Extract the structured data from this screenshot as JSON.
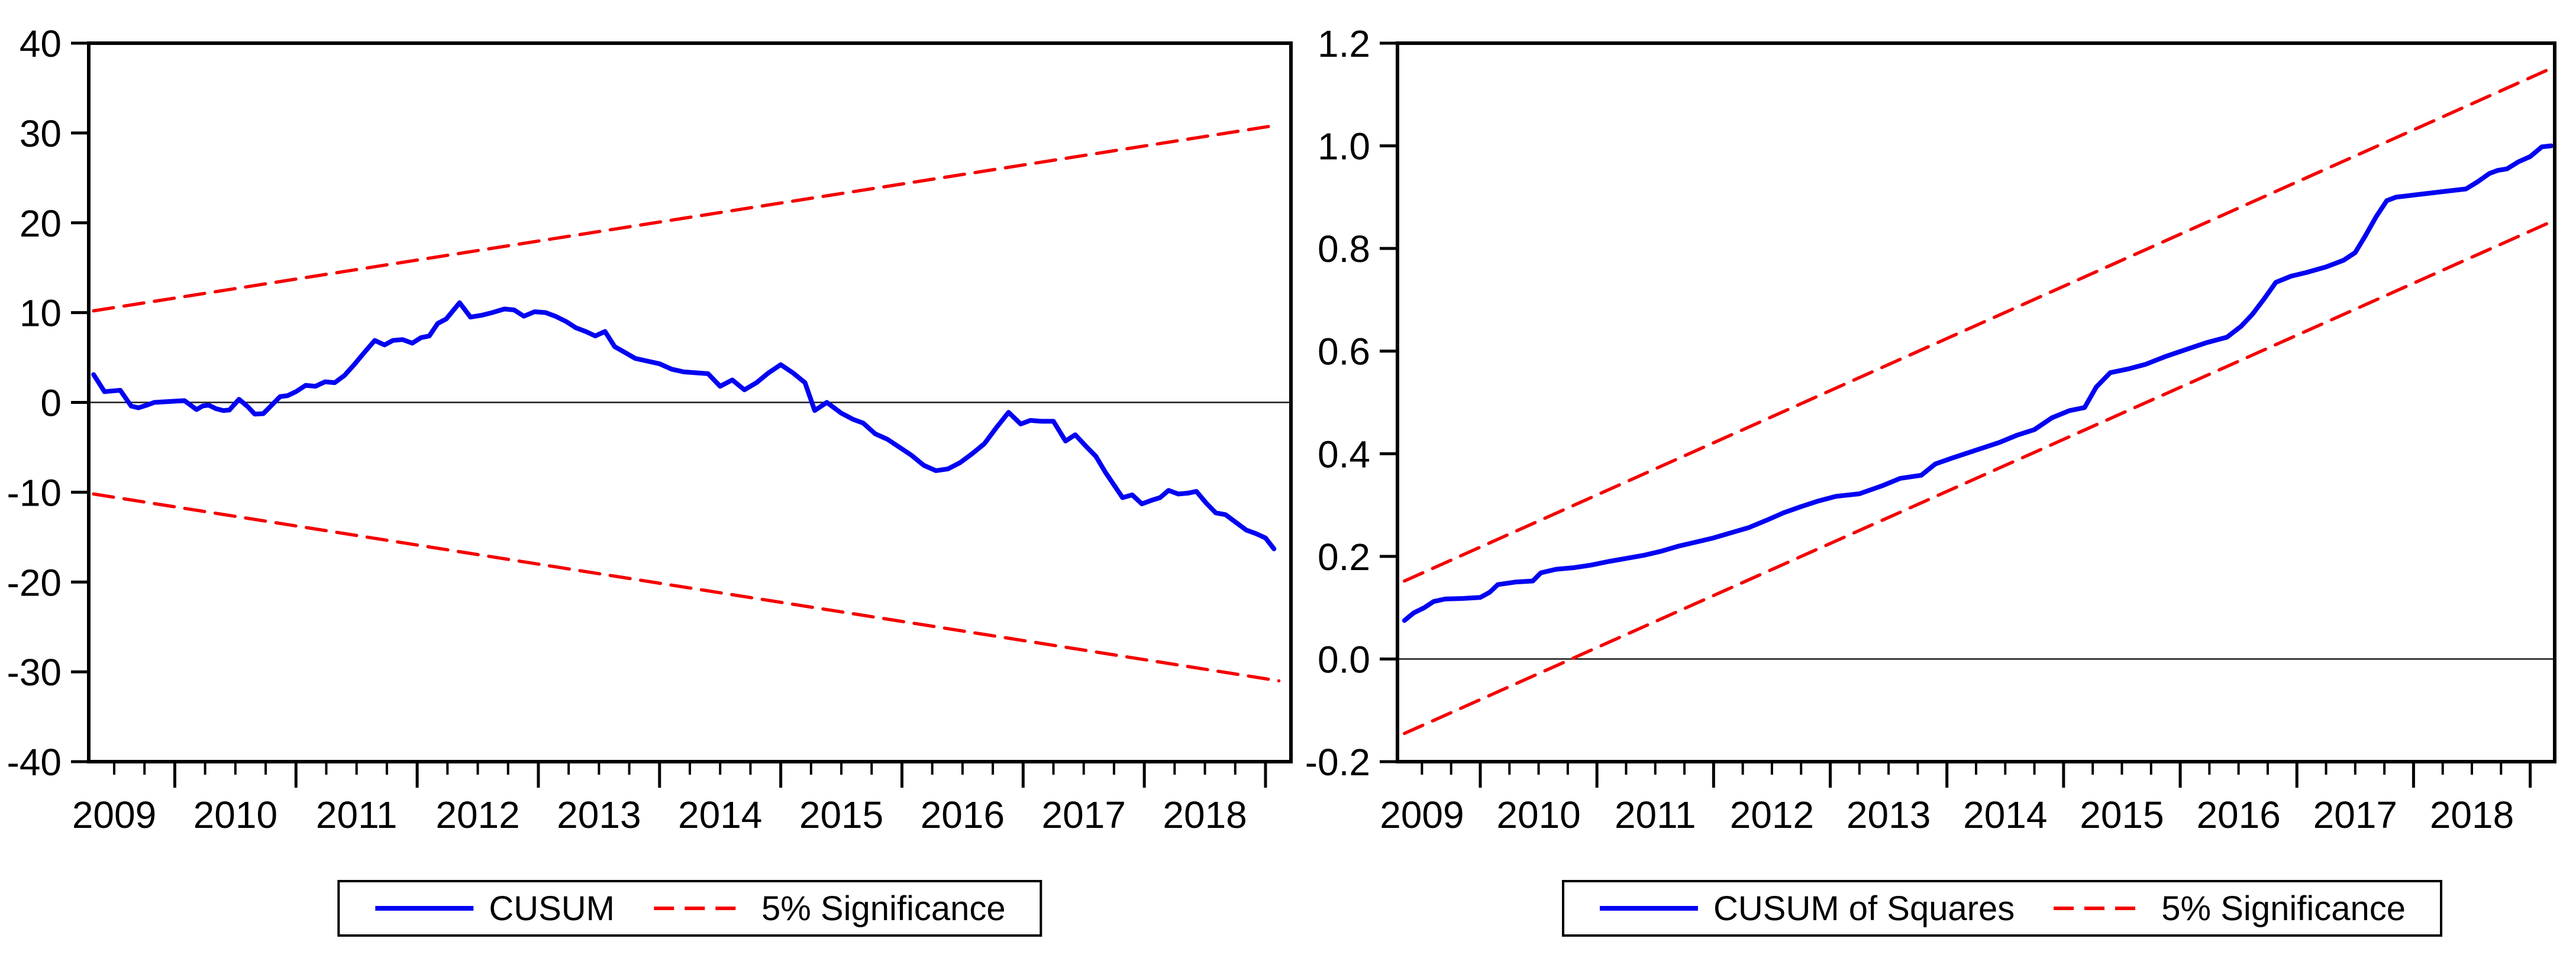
{
  "figure": {
    "background": "#ffffff",
    "series_color": "#0202f2",
    "bound_color": "#f40000",
    "axis_color": "#000000"
  },
  "chart_data": [
    {
      "type": "line",
      "title": "",
      "xlabel": "",
      "ylabel": "",
      "xlim": [
        2008.79,
        2018.71
      ],
      "ylim": [
        -40,
        40
      ],
      "grid": "zero-line-only",
      "legend_position": "bottom-center",
      "yticks": [
        {
          "v": 40,
          "label": "40"
        },
        {
          "v": 30,
          "label": "30"
        },
        {
          "v": 20,
          "label": "20"
        },
        {
          "v": 10,
          "label": "10"
        },
        {
          "v": 0,
          "label": "0"
        },
        {
          "v": -10,
          "label": "-10"
        },
        {
          "v": -20,
          "label": "-20"
        },
        {
          "v": -30,
          "label": "-30"
        },
        {
          "v": -40,
          "label": "-40"
        }
      ],
      "xticks": [
        {
          "v": 2009,
          "label": "2009"
        },
        {
          "v": 2010,
          "label": "2010"
        },
        {
          "v": 2011,
          "label": "2011"
        },
        {
          "v": 2012,
          "label": "2012"
        },
        {
          "v": 2013,
          "label": "2013"
        },
        {
          "v": 2014,
          "label": "2014"
        },
        {
          "v": 2015,
          "label": "2015"
        },
        {
          "v": 2016,
          "label": "2016"
        },
        {
          "v": 2017,
          "label": "2017"
        },
        {
          "v": 2018,
          "label": "2018"
        }
      ],
      "legend": [
        {
          "label": "CUSUM",
          "color": "#0202f2",
          "dash": null
        },
        {
          "label": "5% Significance",
          "color": "#f40000",
          "dash": [
            34,
            18
          ]
        }
      ],
      "series": [
        {
          "name": "CUSUM",
          "color": "#0202f2",
          "dash": null,
          "width": 8,
          "points": [
            [
              2008.83,
              3.1
            ],
            [
              2008.92,
              1.2
            ],
            [
              2009.0,
              1.3
            ],
            [
              2009.05,
              1.35
            ],
            [
              2009.14,
              -0.4
            ],
            [
              2009.2,
              -0.6
            ],
            [
              2009.27,
              -0.3
            ],
            [
              2009.33,
              0.0
            ],
            [
              2009.45,
              0.1
            ],
            [
              2009.58,
              0.2
            ],
            [
              2009.68,
              -0.8
            ],
            [
              2009.73,
              -0.4
            ],
            [
              2009.78,
              -0.3
            ],
            [
              2009.84,
              -0.7
            ],
            [
              2009.9,
              -0.9
            ],
            [
              2009.95,
              -0.85
            ],
            [
              2010.03,
              0.35
            ],
            [
              2010.1,
              -0.45
            ],
            [
              2010.16,
              -1.3
            ],
            [
              2010.23,
              -1.25
            ],
            [
              2010.3,
              -0.3
            ],
            [
              2010.37,
              0.65
            ],
            [
              2010.43,
              0.75
            ],
            [
              2010.5,
              1.2
            ],
            [
              2010.58,
              1.9
            ],
            [
              2010.66,
              1.8
            ],
            [
              2010.74,
              2.3
            ],
            [
              2010.82,
              2.2
            ],
            [
              2010.9,
              3.0
            ],
            [
              2010.98,
              4.2
            ],
            [
              2011.06,
              5.5
            ],
            [
              2011.15,
              6.9
            ],
            [
              2011.23,
              6.4
            ],
            [
              2011.3,
              6.9
            ],
            [
              2011.38,
              7.0
            ],
            [
              2011.46,
              6.6
            ],
            [
              2011.53,
              7.2
            ],
            [
              2011.6,
              7.4
            ],
            [
              2011.67,
              8.8
            ],
            [
              2011.74,
              9.3
            ],
            [
              2011.85,
              11.1
            ],
            [
              2011.94,
              9.5
            ],
            [
              2012.03,
              9.7
            ],
            [
              2012.12,
              10.0
            ],
            [
              2012.22,
              10.4
            ],
            [
              2012.3,
              10.3
            ],
            [
              2012.38,
              9.6
            ],
            [
              2012.47,
              10.1
            ],
            [
              2012.56,
              10.0
            ],
            [
              2012.64,
              9.6
            ],
            [
              2012.73,
              9.0
            ],
            [
              2012.81,
              8.3
            ],
            [
              2012.89,
              7.9
            ],
            [
              2012.97,
              7.4
            ],
            [
              2013.05,
              7.9
            ],
            [
              2013.13,
              6.2
            ],
            [
              2013.21,
              5.6
            ],
            [
              2013.3,
              4.9
            ],
            [
              2013.4,
              4.6
            ],
            [
              2013.5,
              4.3
            ],
            [
              2013.6,
              3.7
            ],
            [
              2013.7,
              3.4
            ],
            [
              2013.8,
              3.3
            ],
            [
              2013.9,
              3.2
            ],
            [
              2014.0,
              1.8
            ],
            [
              2014.1,
              2.5
            ],
            [
              2014.2,
              1.4
            ],
            [
              2014.3,
              2.2
            ],
            [
              2014.4,
              3.3
            ],
            [
              2014.5,
              4.2
            ],
            [
              2014.6,
              3.3
            ],
            [
              2014.7,
              2.2
            ],
            [
              2014.78,
              -0.9
            ],
            [
              2014.88,
              0.0
            ],
            [
              2015.0,
              -1.2
            ],
            [
              2015.1,
              -1.9
            ],
            [
              2015.18,
              -2.3
            ],
            [
              2015.28,
              -3.5
            ],
            [
              2015.38,
              -4.1
            ],
            [
              2015.48,
              -5.0
            ],
            [
              2015.58,
              -5.9
            ],
            [
              2015.68,
              -7.0
            ],
            [
              2015.78,
              -7.6
            ],
            [
              2015.88,
              -7.4
            ],
            [
              2015.98,
              -6.7
            ],
            [
              2016.08,
              -5.7
            ],
            [
              2016.18,
              -4.6
            ],
            [
              2016.28,
              -2.8
            ],
            [
              2016.38,
              -1.1
            ],
            [
              2016.48,
              -2.4
            ],
            [
              2016.56,
              -2.0
            ],
            [
              2016.65,
              -2.1
            ],
            [
              2016.75,
              -2.1
            ],
            [
              2016.85,
              -4.3
            ],
            [
              2016.93,
              -3.6
            ],
            [
              2017.02,
              -4.9
            ],
            [
              2017.1,
              -6.0
            ],
            [
              2017.18,
              -7.8
            ],
            [
              2017.26,
              -9.4
            ],
            [
              2017.32,
              -10.6
            ],
            [
              2017.4,
              -10.3
            ],
            [
              2017.48,
              -11.3
            ],
            [
              2017.56,
              -10.9
            ],
            [
              2017.63,
              -10.6
            ],
            [
              2017.7,
              -9.8
            ],
            [
              2017.78,
              -10.2
            ],
            [
              2017.86,
              -10.1
            ],
            [
              2017.93,
              -9.9
            ],
            [
              2018.01,
              -11.2
            ],
            [
              2018.09,
              -12.3
            ],
            [
              2018.17,
              -12.5
            ],
            [
              2018.25,
              -13.3
            ],
            [
              2018.34,
              -14.2
            ],
            [
              2018.42,
              -14.6
            ],
            [
              2018.5,
              -15.1
            ],
            [
              2018.57,
              -16.3
            ]
          ]
        },
        {
          "name": "5% Significance (upper)",
          "color": "#f40000",
          "dash": [
            34,
            18
          ],
          "width": 5.5,
          "points": [
            [
              2008.83,
              10.2
            ],
            [
              2018.61,
              30.9
            ]
          ]
        },
        {
          "name": "5% Significance (lower)",
          "color": "#f40000",
          "dash": [
            34,
            18
          ],
          "width": 5.5,
          "points": [
            [
              2008.83,
              -10.2
            ],
            [
              2018.61,
              -31.0
            ]
          ]
        }
      ]
    },
    {
      "type": "line",
      "title": "",
      "xlabel": "",
      "ylabel": "",
      "xlim": [
        2008.79,
        2018.71
      ],
      "ylim": [
        -0.2,
        1.2
      ],
      "grid": "zero-line-only",
      "legend_position": "bottom-center",
      "yticks": [
        {
          "v": 1.2,
          "label": "1.2"
        },
        {
          "v": 1.0,
          "label": "1.0"
        },
        {
          "v": 0.8,
          "label": "0.8"
        },
        {
          "v": 0.6,
          "label": "0.6"
        },
        {
          "v": 0.4,
          "label": "0.4"
        },
        {
          "v": 0.2,
          "label": "0.2"
        },
        {
          "v": 0.0,
          "label": "0.0"
        },
        {
          "v": -0.2,
          "label": "-0.2"
        }
      ],
      "xticks": [
        {
          "v": 2009,
          "label": "2009"
        },
        {
          "v": 2010,
          "label": "2010"
        },
        {
          "v": 2011,
          "label": "2011"
        },
        {
          "v": 2012,
          "label": "2012"
        },
        {
          "v": 2013,
          "label": "2013"
        },
        {
          "v": 2014,
          "label": "2014"
        },
        {
          "v": 2015,
          "label": "2015"
        },
        {
          "v": 2016,
          "label": "2016"
        },
        {
          "v": 2017,
          "label": "2017"
        },
        {
          "v": 2018,
          "label": "2018"
        }
      ],
      "legend": [
        {
          "label": "CUSUM of Squares",
          "color": "#0202f2",
          "dash": null
        },
        {
          "label": "5% Significance",
          "color": "#f40000",
          "dash": [
            34,
            18
          ]
        }
      ],
      "series": [
        {
          "name": "CUSUM of Squares",
          "color": "#0202f2",
          "dash": null,
          "width": 8,
          "points": [
            [
              2008.85,
              0.075
            ],
            [
              2008.93,
              0.09
            ],
            [
              2009.02,
              0.1
            ],
            [
              2009.1,
              0.112
            ],
            [
              2009.2,
              0.117
            ],
            [
              2009.35,
              0.118
            ],
            [
              2009.5,
              0.12
            ],
            [
              2009.58,
              0.13
            ],
            [
              2009.65,
              0.145
            ],
            [
              2009.8,
              0.15
            ],
            [
              2009.95,
              0.152
            ],
            [
              2010.02,
              0.168
            ],
            [
              2010.15,
              0.175
            ],
            [
              2010.3,
              0.178
            ],
            [
              2010.45,
              0.183
            ],
            [
              2010.6,
              0.19
            ],
            [
              2010.75,
              0.196
            ],
            [
              2010.9,
              0.202
            ],
            [
              2011.05,
              0.21
            ],
            [
              2011.2,
              0.22
            ],
            [
              2011.35,
              0.228
            ],
            [
              2011.5,
              0.236
            ],
            [
              2011.65,
              0.246
            ],
            [
              2011.8,
              0.256
            ],
            [
              2011.95,
              0.27
            ],
            [
              2012.1,
              0.285
            ],
            [
              2012.25,
              0.297
            ],
            [
              2012.4,
              0.308
            ],
            [
              2012.55,
              0.317
            ],
            [
              2012.75,
              0.322
            ],
            [
              2012.95,
              0.338
            ],
            [
              2013.1,
              0.352
            ],
            [
              2013.28,
              0.358
            ],
            [
              2013.4,
              0.38
            ],
            [
              2013.55,
              0.392
            ],
            [
              2013.75,
              0.407
            ],
            [
              2013.95,
              0.422
            ],
            [
              2014.1,
              0.436
            ],
            [
              2014.25,
              0.447
            ],
            [
              2014.4,
              0.47
            ],
            [
              2014.55,
              0.484
            ],
            [
              2014.68,
              0.49
            ],
            [
              2014.78,
              0.53
            ],
            [
              2014.9,
              0.558
            ],
            [
              2015.05,
              0.565
            ],
            [
              2015.2,
              0.574
            ],
            [
              2015.38,
              0.59
            ],
            [
              2015.55,
              0.603
            ],
            [
              2015.72,
              0.616
            ],
            [
              2015.9,
              0.627
            ],
            [
              2016.02,
              0.648
            ],
            [
              2016.12,
              0.672
            ],
            [
              2016.22,
              0.702
            ],
            [
              2016.32,
              0.734
            ],
            [
              2016.45,
              0.746
            ],
            [
              2016.58,
              0.753
            ],
            [
              2016.75,
              0.764
            ],
            [
              2016.9,
              0.777
            ],
            [
              2017.0,
              0.792
            ],
            [
              2017.08,
              0.822
            ],
            [
              2017.18,
              0.862
            ],
            [
              2017.27,
              0.893
            ],
            [
              2017.35,
              0.9
            ],
            [
              2017.5,
              0.904
            ],
            [
              2017.65,
              0.908
            ],
            [
              2017.8,
              0.912
            ],
            [
              2017.95,
              0.916
            ],
            [
              2018.05,
              0.93
            ],
            [
              2018.15,
              0.946
            ],
            [
              2018.22,
              0.952
            ],
            [
              2018.3,
              0.955
            ],
            [
              2018.4,
              0.969
            ],
            [
              2018.5,
              0.979
            ],
            [
              2018.6,
              0.998
            ],
            [
              2018.68,
              1.0
            ]
          ]
        },
        {
          "name": "5% Significance (upper)",
          "color": "#f40000",
          "dash": [
            34,
            18
          ],
          "width": 5.5,
          "points": [
            [
              2008.85,
              0.152
            ],
            [
              2018.68,
              1.151
            ]
          ]
        },
        {
          "name": "5% Significance (lower)",
          "color": "#f40000",
          "dash": [
            34,
            18
          ],
          "width": 5.5,
          "points": [
            [
              2008.85,
              -0.145
            ],
            [
              2018.68,
              0.852
            ]
          ]
        }
      ]
    }
  ]
}
